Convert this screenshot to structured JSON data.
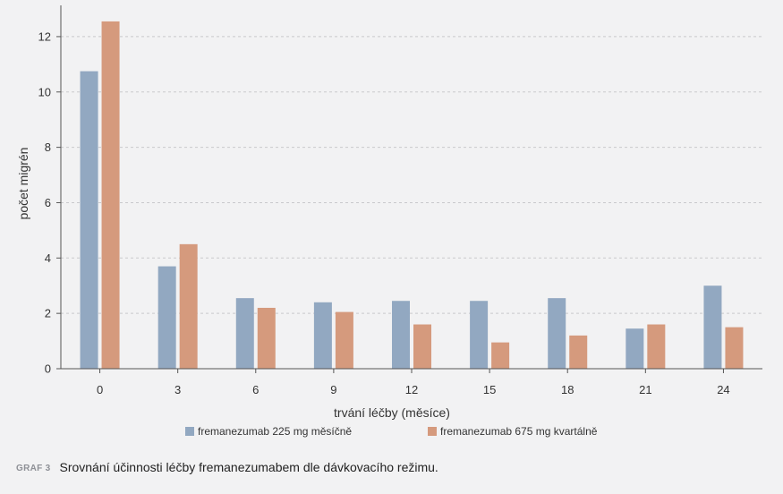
{
  "chart_data": {
    "type": "bar",
    "categories": [
      "0",
      "3",
      "6",
      "9",
      "12",
      "15",
      "18",
      "21",
      "24"
    ],
    "series": [
      {
        "name": "fremanezumab 225 mg měsíčně",
        "color": "#92a8c1",
        "values": [
          10.75,
          3.7,
          2.55,
          2.4,
          2.45,
          2.45,
          2.55,
          1.45,
          3.0
        ]
      },
      {
        "name": "fremanezumab 675 mg kvartálně",
        "color": "#d59a7d",
        "values": [
          12.55,
          4.5,
          2.2,
          2.05,
          1.6,
          0.95,
          1.2,
          1.6,
          1.5
        ]
      }
    ],
    "xlabel": "trvání léčby (měsíce)",
    "ylabel": "počet migrén",
    "ylim": [
      0,
      13
    ],
    "yticks": [
      0,
      2,
      4,
      6,
      8,
      10,
      12
    ],
    "grid": true,
    "legend": "bottom"
  },
  "caption": {
    "tag": "GRAF 3",
    "text": "Srovnání účinnosti léčby fremanezumabem dle dávkovacího režimu."
  }
}
